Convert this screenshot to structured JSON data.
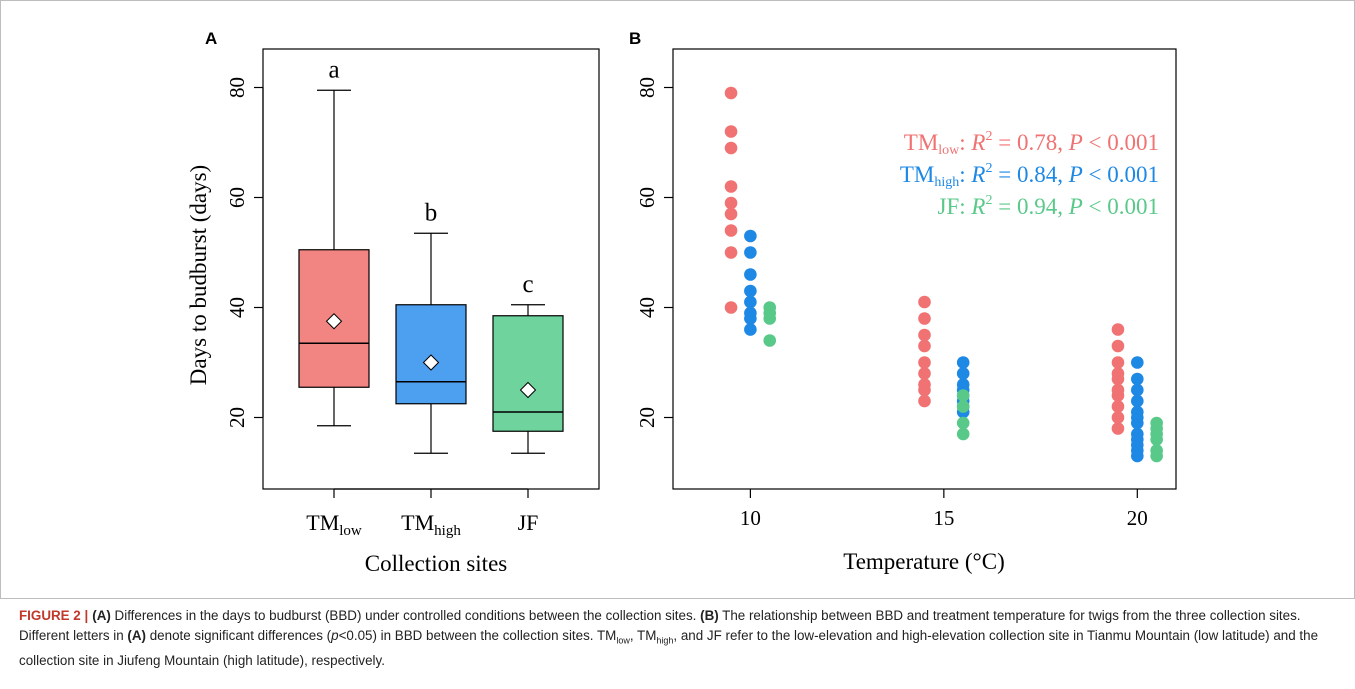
{
  "panel_labels": [
    "A",
    "B"
  ],
  "chart_data": [
    {
      "type": "box",
      "panel": "A",
      "ylabel": "Days to budburst (days)",
      "xlabel": "Collection sites",
      "ylim": [
        7,
        87
      ],
      "yticks": [
        20,
        40,
        60,
        80
      ],
      "groups": [
        {
          "name": "TMlow",
          "label_main": "TM",
          "label_sub": "low",
          "color": "#f28482",
          "whisker_low": 18.5,
          "q1": 25.5,
          "median": 33.5,
          "q3": 50.5,
          "whisker_high": 79.5,
          "mean": 37.5,
          "letter": "a"
        },
        {
          "name": "TMhigh",
          "label_main": "TM",
          "label_sub": "high",
          "color": "#4d9ff0",
          "whisker_low": 13.5,
          "q1": 22.5,
          "median": 26.5,
          "q3": 40.5,
          "whisker_high": 53.5,
          "mean": 30,
          "letter": "b"
        },
        {
          "name": "JF",
          "label_main": "JF",
          "label_sub": "",
          "color": "#6ed39c",
          "whisker_low": 13.5,
          "q1": 17.5,
          "median": 21,
          "q3": 38.5,
          "whisker_high": 40.5,
          "mean": 25,
          "letter": "c"
        }
      ]
    },
    {
      "type": "scatter",
      "panel": "B",
      "xlabel": "Temperature (°C)",
      "xlim": [
        8,
        21
      ],
      "ylim": [
        7,
        87
      ],
      "xticks": [
        10,
        15,
        20
      ],
      "yticks": [
        20,
        40,
        60,
        80
      ],
      "series": [
        {
          "name": "TMlow",
          "label_main": "TM",
          "label_sub": "low",
          "color": "#f07272",
          "stats": ": R² = 0.78, P < 0.001",
          "stat_r2": "0.78",
          "stat_p": "< 0.001",
          "points": [
            [
              9.5,
              79
            ],
            [
              9.5,
              72
            ],
            [
              9.5,
              69
            ],
            [
              9.5,
              62
            ],
            [
              9.5,
              59
            ],
            [
              9.5,
              57
            ],
            [
              9.5,
              54
            ],
            [
              9.5,
              50
            ],
            [
              9.5,
              40
            ],
            [
              14.5,
              41
            ],
            [
              14.5,
              38
            ],
            [
              14.5,
              35
            ],
            [
              14.5,
              33
            ],
            [
              14.5,
              30
            ],
            [
              14.5,
              28
            ],
            [
              14.5,
              26
            ],
            [
              14.5,
              25
            ],
            [
              14.5,
              23
            ],
            [
              19.5,
              36
            ],
            [
              19.5,
              33
            ],
            [
              19.5,
              30
            ],
            [
              19.5,
              28
            ],
            [
              19.5,
              27
            ],
            [
              19.5,
              25
            ],
            [
              19.5,
              24
            ],
            [
              19.5,
              22
            ],
            [
              19.5,
              20
            ],
            [
              19.5,
              18
            ]
          ],
          "fit": {
            "a": 656,
            "b": 0.067
          },
          "band": 7
        },
        {
          "name": "TMhigh",
          "label_main": "TM",
          "label_sub": "high",
          "color": "#1e88e5",
          "stats": ": R² = 0.84, P < 0.001",
          "stat_r2": "0.84",
          "stat_p": "< 0.001",
          "points": [
            [
              10,
              53
            ],
            [
              10,
              50
            ],
            [
              10,
              46
            ],
            [
              10,
              43
            ],
            [
              10,
              41
            ],
            [
              10,
              39
            ],
            [
              10,
              38
            ],
            [
              10,
              36
            ],
            [
              15.5,
              30
            ],
            [
              15.5,
              28
            ],
            [
              15.5,
              26
            ],
            [
              15.5,
              25
            ],
            [
              15.5,
              24
            ],
            [
              15.5,
              23
            ],
            [
              15.5,
              22
            ],
            [
              15.5,
              21
            ],
            [
              20,
              30
            ],
            [
              20,
              27
            ],
            [
              20,
              25
            ],
            [
              20,
              23
            ],
            [
              20,
              21
            ],
            [
              20,
              20
            ],
            [
              20,
              19
            ],
            [
              20,
              17
            ],
            [
              20,
              16
            ],
            [
              20,
              15
            ],
            [
              20,
              14
            ],
            [
              20,
              13
            ]
          ],
          "fit": {
            "a": 599,
            "b": 0.083
          },
          "band": 4
        },
        {
          "name": "JF",
          "label_main": "JF",
          "label_sub": "",
          "color": "#59c98a",
          "stats": ": R² = 0.94, P < 0.001",
          "stat_r2": "0.94",
          "stat_p": "< 0.001",
          "points": [
            [
              10.5,
              40
            ],
            [
              10.5,
              39
            ],
            [
              10.5,
              38
            ],
            [
              10.5,
              34
            ],
            [
              15.5,
              24
            ],
            [
              15.5,
              22
            ],
            [
              15.5,
              19
            ],
            [
              15.5,
              17
            ],
            [
              20.5,
              19
            ],
            [
              20.5,
              18
            ],
            [
              20.5,
              17
            ],
            [
              20.5,
              16
            ],
            [
              20.5,
              14
            ],
            [
              20.5,
              13
            ]
          ],
          "fit": {
            "a": 1074,
            "b": 0.117
          },
          "band": 3
        }
      ]
    }
  ],
  "caption": {
    "figure_label": "FIGURE 2 |",
    "segments": [
      {
        "t": "(A)",
        "s": "b"
      },
      {
        "t": " Differences in the days to budburst (BBD) under controlled conditions between the collection sites. ",
        "s": ""
      },
      {
        "t": "(B)",
        "s": "b"
      },
      {
        "t": " The relationship between BBD and treatment temperature for twigs from the three collection sites. Different letters in ",
        "s": ""
      },
      {
        "t": "(A)",
        "s": "b"
      },
      {
        "t": " denote significant differences (",
        "s": ""
      },
      {
        "t": "p",
        "s": "i"
      },
      {
        "t": "<0.05) in BBD between the collection sites. TM",
        "s": ""
      },
      {
        "t": "low",
        "s": "sub"
      },
      {
        "t": ", TM",
        "s": ""
      },
      {
        "t": "high",
        "s": "sub"
      },
      {
        "t": ", and JF refer to the low-elevation and high-elevation collection site in Tianmu Mountain (low latitude) and the collection site in Jiufeng Mountain (high latitude), respectively.",
        "s": ""
      }
    ]
  }
}
